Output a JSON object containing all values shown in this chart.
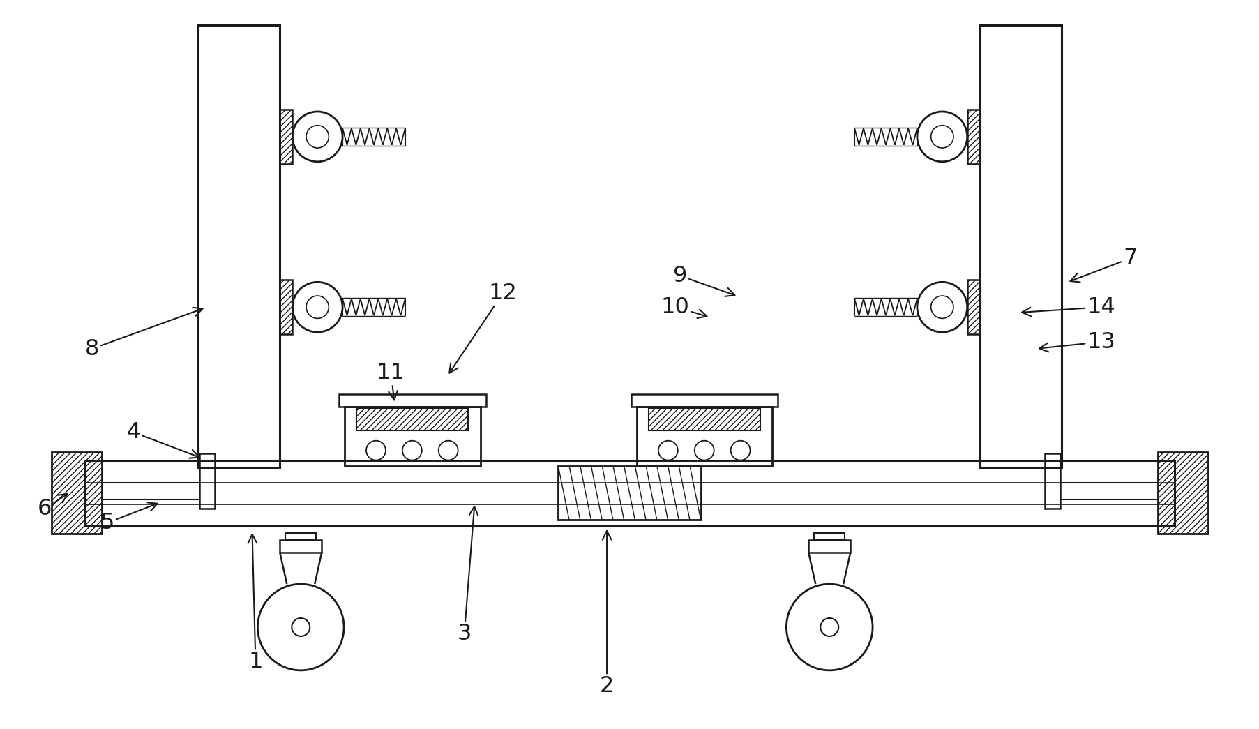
{
  "bg_color": "#ffffff",
  "line_color": "#1a1a1a",
  "figsize": [
    18.06,
    10.45
  ],
  "dpi": 100
}
